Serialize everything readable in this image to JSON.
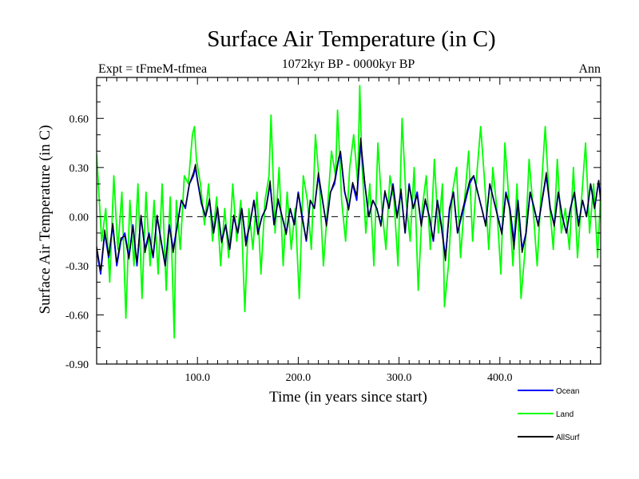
{
  "chart_data": {
    "type": "line",
    "title": "Surface Air Temperature (in C)",
    "subtitle_left": "Expt = tFmeM-tfmea",
    "subtitle_center": "1072kyr BP - 0000kyr BP",
    "subtitle_right": "Ann",
    "xlabel": "Time (in years since start)",
    "ylabel": "Surface Air Temperature (in C)",
    "xlim": [
      0,
      500
    ],
    "ylim": [
      -0.9,
      0.85
    ],
    "xticks": [
      100,
      200,
      300,
      400
    ],
    "xtick_labels": [
      "100.0",
      "200.0",
      "300.0",
      "400.0"
    ],
    "yticks": [
      -0.9,
      -0.6,
      -0.3,
      0.0,
      0.3,
      0.6
    ],
    "ytick_labels": [
      "-0.90",
      "-0.60",
      "-0.30",
      "0.00",
      "0.30",
      "0.60"
    ],
    "zero_line": "dashed",
    "legend_position": "bottom-right",
    "series": [
      {
        "name": "Land",
        "color": "#00ff00",
        "x": [
          0,
          5,
          9,
          13,
          17,
          21,
          25,
          29,
          33,
          37,
          41,
          45,
          49,
          53,
          57,
          61,
          65,
          69,
          73,
          77,
          79,
          83,
          87,
          91,
          95,
          97,
          99,
          103,
          107,
          111,
          115,
          119,
          123,
          127,
          131,
          135,
          139,
          143,
          147,
          151,
          155,
          159,
          163,
          167,
          171,
          173,
          177,
          181,
          185,
          189,
          193,
          197,
          201,
          205,
          209,
          213,
          217,
          221,
          225,
          229,
          233,
          237,
          239,
          243,
          247,
          251,
          255,
          259,
          261,
          263,
          267,
          271,
          275,
          279,
          283,
          287,
          291,
          295,
          299,
          303,
          307,
          311,
          315,
          319,
          323,
          327,
          331,
          335,
          339,
          343,
          345,
          349,
          353,
          357,
          361,
          365,
          369,
          373,
          377,
          381,
          385,
          389,
          393,
          397,
          401,
          405,
          409,
          413,
          417,
          421,
          425,
          429,
          433,
          437,
          441,
          445,
          449,
          453,
          457,
          461,
          465,
          469,
          473,
          477,
          481,
          485,
          489,
          493,
          497,
          500
        ],
        "values": [
          0.38,
          -0.15,
          0.05,
          -0.4,
          0.25,
          -0.2,
          0.15,
          -0.62,
          0.1,
          -0.3,
          0.2,
          -0.5,
          0.15,
          -0.3,
          0.1,
          -0.35,
          0.2,
          -0.45,
          0.12,
          -0.74,
          0.1,
          -0.2,
          0.25,
          0.2,
          0.5,
          0.55,
          0.35,
          0.2,
          -0.05,
          0.2,
          -0.15,
          0.12,
          -0.3,
          0.05,
          -0.25,
          0.2,
          -0.15,
          0.1,
          -0.58,
          0.05,
          -0.2,
          0.15,
          -0.35,
          0.1,
          0.25,
          0.62,
          -0.1,
          0.3,
          -0.3,
          0.15,
          -0.2,
          0.05,
          -0.5,
          0.25,
          0.1,
          -0.2,
          0.5,
          0.2,
          -0.3,
          0.05,
          0.4,
          0.25,
          0.65,
          0.1,
          -0.15,
          0.3,
          0.5,
          0.2,
          0.8,
          0.35,
          -0.1,
          0.2,
          -0.3,
          0.45,
          0.05,
          -0.2,
          0.25,
          0.1,
          -0.3,
          0.6,
          0.1,
          -0.15,
          0.3,
          -0.45,
          0.05,
          0.25,
          -0.2,
          0.35,
          -0.1,
          0.2,
          -0.55,
          -0.3,
          0.15,
          0.3,
          -0.25,
          0.1,
          0.4,
          -0.15,
          0.25,
          0.55,
          0.2,
          -0.2,
          0.3,
          0.05,
          -0.35,
          0.45,
          0.1,
          -0.3,
          0.2,
          -0.5,
          -0.2,
          0.35,
          0.05,
          -0.3,
          0.15,
          0.55,
          0.1,
          -0.2,
          0.35,
          -0.1,
          0.05,
          -0.2,
          0.3,
          -0.25,
          0.1,
          0.45,
          -0.1,
          0.2,
          -0.25,
          0.15
        ]
      },
      {
        "name": "Ocean",
        "color": "#0000ff",
        "x": [
          0,
          4,
          8,
          12,
          16,
          20,
          24,
          28,
          32,
          36,
          40,
          44,
          48,
          52,
          56,
          60,
          64,
          68,
          72,
          76,
          80,
          84,
          88,
          92,
          96,
          98,
          100,
          104,
          108,
          112,
          116,
          120,
          124,
          128,
          132,
          136,
          140,
          144,
          148,
          152,
          156,
          160,
          164,
          168,
          172,
          176,
          180,
          184,
          188,
          192,
          196,
          200,
          204,
          208,
          212,
          216,
          220,
          224,
          228,
          232,
          236,
          240,
          242,
          246,
          250,
          254,
          258,
          262,
          266,
          270,
          274,
          278,
          282,
          286,
          290,
          294,
          298,
          302,
          306,
          310,
          314,
          318,
          322,
          326,
          330,
          334,
          338,
          342,
          346,
          350,
          354,
          358,
          362,
          366,
          370,
          374,
          378,
          382,
          386,
          390,
          394,
          398,
          402,
          406,
          410,
          414,
          418,
          422,
          426,
          430,
          434,
          438,
          442,
          446,
          450,
          454,
          458,
          462,
          466,
          470,
          474,
          478,
          482,
          486,
          490,
          494,
          498,
          500
        ],
        "values": [
          -0.2,
          -0.35,
          -0.1,
          -0.25,
          -0.05,
          -0.3,
          -0.15,
          -0.1,
          -0.25,
          -0.05,
          -0.3,
          0.0,
          -0.2,
          -0.1,
          -0.25,
          0.0,
          -0.15,
          -0.3,
          -0.05,
          -0.2,
          -0.05,
          0.1,
          0.05,
          0.2,
          0.25,
          0.3,
          0.22,
          0.08,
          0.0,
          0.1,
          -0.1,
          0.05,
          -0.15,
          -0.05,
          -0.2,
          0.0,
          -0.1,
          0.05,
          -0.15,
          -0.05,
          0.1,
          -0.1,
          0.0,
          0.05,
          0.2,
          -0.05,
          0.1,
          0.0,
          -0.1,
          0.05,
          -0.05,
          0.15,
          0.0,
          -0.15,
          0.1,
          0.05,
          0.25,
          0.1,
          -0.05,
          0.15,
          0.2,
          0.35,
          0.38,
          0.15,
          0.05,
          0.2,
          0.1,
          0.45,
          0.2,
          0.0,
          0.1,
          0.05,
          -0.05,
          0.15,
          0.05,
          0.2,
          0.0,
          0.15,
          -0.1,
          0.2,
          0.05,
          0.15,
          -0.05,
          0.1,
          0.0,
          -0.15,
          0.1,
          -0.05,
          -0.25,
          0.05,
          0.15,
          -0.1,
          0.0,
          0.1,
          0.2,
          0.25,
          0.15,
          0.05,
          -0.05,
          0.2,
          0.1,
          0.0,
          -0.1,
          0.15,
          0.05,
          -0.15,
          0.1,
          -0.2,
          -0.1,
          0.15,
          0.05,
          -0.05,
          0.1,
          0.25,
          0.05,
          -0.05,
          0.15,
          0.0,
          -0.1,
          0.05,
          0.15,
          -0.05,
          0.1,
          0.0,
          0.2,
          0.05,
          0.22,
          0.1
        ]
      },
      {
        "name": "AllSurf",
        "color": "#000000",
        "x": [
          0,
          4,
          8,
          12,
          16,
          20,
          24,
          28,
          32,
          36,
          40,
          44,
          48,
          52,
          56,
          60,
          64,
          68,
          72,
          76,
          80,
          84,
          88,
          92,
          96,
          98,
          100,
          104,
          108,
          112,
          116,
          120,
          124,
          128,
          132,
          136,
          140,
          144,
          148,
          152,
          156,
          160,
          164,
          168,
          172,
          176,
          180,
          184,
          188,
          192,
          196,
          200,
          204,
          208,
          212,
          216,
          220,
          224,
          228,
          232,
          236,
          240,
          242,
          246,
          250,
          254,
          258,
          262,
          266,
          270,
          274,
          278,
          282,
          286,
          290,
          294,
          298,
          302,
          306,
          310,
          314,
          318,
          322,
          326,
          330,
          334,
          338,
          342,
          346,
          350,
          354,
          358,
          362,
          366,
          370,
          374,
          378,
          382,
          386,
          390,
          394,
          398,
          402,
          406,
          410,
          414,
          418,
          422,
          426,
          430,
          434,
          438,
          442,
          446,
          450,
          454,
          458,
          462,
          466,
          470,
          474,
          478,
          482,
          486,
          490,
          494,
          498,
          500
        ],
        "values": [
          -0.18,
          -0.33,
          -0.08,
          -0.24,
          -0.04,
          -0.28,
          -0.13,
          -0.12,
          -0.26,
          -0.06,
          -0.28,
          0.01,
          -0.22,
          -0.11,
          -0.24,
          0.01,
          -0.16,
          -0.3,
          -0.06,
          -0.22,
          -0.06,
          0.1,
          0.06,
          0.2,
          0.27,
          0.32,
          0.23,
          0.09,
          0.0,
          0.11,
          -0.1,
          0.06,
          -0.16,
          -0.05,
          -0.2,
          0.01,
          -0.1,
          0.05,
          -0.18,
          -0.05,
          0.1,
          -0.11,
          0.0,
          0.05,
          0.22,
          -0.05,
          0.11,
          0.0,
          -0.11,
          0.05,
          -0.05,
          0.14,
          -0.02,
          -0.14,
          0.1,
          0.05,
          0.27,
          0.11,
          -0.06,
          0.15,
          0.22,
          0.36,
          0.4,
          0.16,
          0.04,
          0.21,
          0.13,
          0.48,
          0.21,
          0.0,
          0.1,
          0.05,
          -0.06,
          0.16,
          0.05,
          0.19,
          -0.01,
          0.17,
          -0.1,
          0.19,
          0.05,
          0.13,
          -0.06,
          0.11,
          0.0,
          -0.14,
          0.1,
          -0.07,
          -0.27,
          0.03,
          0.15,
          -0.1,
          0.02,
          0.12,
          0.22,
          0.25,
          0.15,
          0.05,
          -0.06,
          0.2,
          0.1,
          -0.01,
          -0.11,
          0.14,
          0.04,
          -0.2,
          0.09,
          -0.22,
          -0.11,
          0.15,
          0.06,
          -0.06,
          0.11,
          0.27,
          0.05,
          -0.06,
          0.15,
          0.0,
          -0.1,
          0.05,
          0.15,
          -0.06,
          0.1,
          0.0,
          0.2,
          0.05,
          0.22,
          0.1
        ]
      }
    ],
    "draw_order": [
      "Land",
      "Ocean",
      "AllSurf"
    ]
  }
}
